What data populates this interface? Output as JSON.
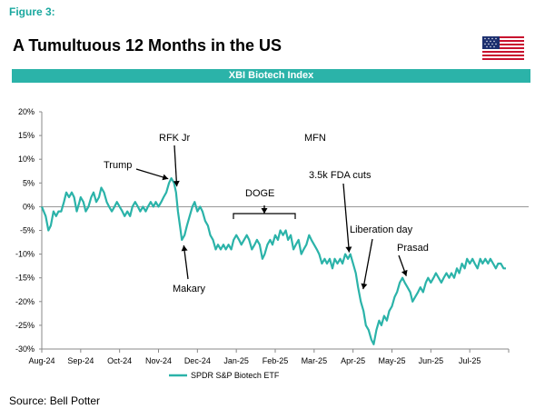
{
  "figure_label": "Figure 3:",
  "title": "A Tumultuous 12 Months in the US",
  "flag_icon": "us-flag-icon",
  "header_bar": "XBI Biotech Index",
  "source": "Source: Bell Potter",
  "colors": {
    "accent": "#2bb3a9",
    "label": "#1aa89f"
  },
  "chart_data": {
    "type": "line",
    "title": "XBI Biotech Index",
    "xlabel": "",
    "ylabel": "",
    "ylim": [
      -30,
      20
    ],
    "yticks": [
      20,
      15,
      10,
      5,
      0,
      -5,
      -10,
      -15,
      -20,
      -25,
      -30
    ],
    "ytick_labels": [
      "20%",
      "15%",
      "10%",
      "5%",
      "0%",
      "-5%",
      "-10%",
      "-15%",
      "-20%",
      "-25%",
      "-30%"
    ],
    "xticks": [
      "Aug-24",
      "Sep-24",
      "Oct-24",
      "Nov-24",
      "Dec-24",
      "Jan-25",
      "Feb-25",
      "Mar-25",
      "Apr-25",
      "May-25",
      "Jun-25",
      "Jul-25"
    ],
    "zero_line": true,
    "legend": {
      "position": "bottom-center",
      "entries": [
        "SPDR S&P Biotech ETF"
      ]
    },
    "series": [
      {
        "name": "SPDR S&P Biotech ETF",
        "color": "#2bb3a9",
        "points": [
          [
            0.0,
            0
          ],
          [
            0.1,
            -2
          ],
          [
            0.17,
            -5
          ],
          [
            0.23,
            -4
          ],
          [
            0.3,
            -1
          ],
          [
            0.37,
            -2
          ],
          [
            0.43,
            -1
          ],
          [
            0.5,
            -1
          ],
          [
            0.57,
            1
          ],
          [
            0.63,
            3
          ],
          [
            0.7,
            2
          ],
          [
            0.77,
            3
          ],
          [
            0.83,
            2
          ],
          [
            0.9,
            -1
          ],
          [
            0.97,
            1
          ],
          [
            1.0,
            2
          ],
          [
            1.07,
            1
          ],
          [
            1.13,
            -1
          ],
          [
            1.2,
            0
          ],
          [
            1.27,
            2
          ],
          [
            1.33,
            3
          ],
          [
            1.4,
            1
          ],
          [
            1.47,
            2
          ],
          [
            1.53,
            4
          ],
          [
            1.6,
            3
          ],
          [
            1.67,
            1
          ],
          [
            1.73,
            0
          ],
          [
            1.8,
            -1
          ],
          [
            1.87,
            0
          ],
          [
            1.93,
            1
          ],
          [
            2.0,
            0
          ],
          [
            2.07,
            -1
          ],
          [
            2.13,
            -2
          ],
          [
            2.2,
            -1
          ],
          [
            2.27,
            -2
          ],
          [
            2.33,
            0
          ],
          [
            2.4,
            1
          ],
          [
            2.47,
            0
          ],
          [
            2.53,
            -1
          ],
          [
            2.6,
            0
          ],
          [
            2.67,
            -1
          ],
          [
            2.73,
            0
          ],
          [
            2.8,
            1
          ],
          [
            2.87,
            0
          ],
          [
            2.93,
            1
          ],
          [
            3.0,
            0
          ],
          [
            3.07,
            1
          ],
          [
            3.13,
            2
          ],
          [
            3.2,
            3
          ],
          [
            3.27,
            5
          ],
          [
            3.33,
            6
          ],
          [
            3.4,
            5
          ],
          [
            3.45,
            3
          ],
          [
            3.5,
            -1
          ],
          [
            3.55,
            -4
          ],
          [
            3.6,
            -7
          ],
          [
            3.67,
            -6
          ],
          [
            3.73,
            -4
          ],
          [
            3.8,
            -2
          ],
          [
            3.87,
            0
          ],
          [
            3.93,
            1
          ],
          [
            4.0,
            -1
          ],
          [
            4.07,
            0
          ],
          [
            4.13,
            -1
          ],
          [
            4.2,
            -3
          ],
          [
            4.27,
            -4
          ],
          [
            4.33,
            -6
          ],
          [
            4.4,
            -7
          ],
          [
            4.47,
            -9
          ],
          [
            4.53,
            -8
          ],
          [
            4.6,
            -9
          ],
          [
            4.67,
            -8
          ],
          [
            4.73,
            -9
          ],
          [
            4.8,
            -8
          ],
          [
            4.87,
            -9
          ],
          [
            4.93,
            -7
          ],
          [
            5.0,
            -6
          ],
          [
            5.07,
            -7
          ],
          [
            5.13,
            -8
          ],
          [
            5.2,
            -7
          ],
          [
            5.27,
            -6
          ],
          [
            5.33,
            -7
          ],
          [
            5.4,
            -9
          ],
          [
            5.47,
            -8
          ],
          [
            5.53,
            -7
          ],
          [
            5.6,
            -8
          ],
          [
            5.67,
            -11
          ],
          [
            5.73,
            -10
          ],
          [
            5.8,
            -8
          ],
          [
            5.87,
            -7
          ],
          [
            5.93,
            -8
          ],
          [
            6.0,
            -6
          ],
          [
            6.07,
            -7
          ],
          [
            6.13,
            -5
          ],
          [
            6.2,
            -6
          ],
          [
            6.27,
            -5
          ],
          [
            6.33,
            -7
          ],
          [
            6.4,
            -6
          ],
          [
            6.47,
            -9
          ],
          [
            6.53,
            -8
          ],
          [
            6.6,
            -7
          ],
          [
            6.67,
            -10
          ],
          [
            6.73,
            -9
          ],
          [
            6.8,
            -8
          ],
          [
            6.87,
            -6
          ],
          [
            6.93,
            -7
          ],
          [
            7.0,
            -8
          ],
          [
            7.07,
            -9
          ],
          [
            7.13,
            -10
          ],
          [
            7.2,
            -12
          ],
          [
            7.27,
            -11
          ],
          [
            7.33,
            -12
          ],
          [
            7.4,
            -11
          ],
          [
            7.47,
            -13
          ],
          [
            7.53,
            -11
          ],
          [
            7.6,
            -12
          ],
          [
            7.67,
            -11
          ],
          [
            7.73,
            -12
          ],
          [
            7.8,
            -10
          ],
          [
            7.87,
            -11
          ],
          [
            7.93,
            -10
          ],
          [
            8.0,
            -12
          ],
          [
            8.07,
            -14
          ],
          [
            8.13,
            -17
          ],
          [
            8.2,
            -20
          ],
          [
            8.27,
            -22
          ],
          [
            8.33,
            -25
          ],
          [
            8.4,
            -26
          ],
          [
            8.47,
            -28
          ],
          [
            8.53,
            -29
          ],
          [
            8.6,
            -26
          ],
          [
            8.67,
            -24
          ],
          [
            8.73,
            -25
          ],
          [
            8.8,
            -23
          ],
          [
            8.87,
            -24
          ],
          [
            8.93,
            -22
          ],
          [
            9.0,
            -21
          ],
          [
            9.07,
            -19
          ],
          [
            9.13,
            -18
          ],
          [
            9.2,
            -16
          ],
          [
            9.27,
            -15
          ],
          [
            9.33,
            -16
          ],
          [
            9.4,
            -17
          ],
          [
            9.47,
            -18
          ],
          [
            9.53,
            -20
          ],
          [
            9.6,
            -19
          ],
          [
            9.67,
            -18
          ],
          [
            9.73,
            -17
          ],
          [
            9.8,
            -18
          ],
          [
            9.87,
            -16
          ],
          [
            9.93,
            -15
          ],
          [
            10.0,
            -16
          ],
          [
            10.07,
            -15
          ],
          [
            10.13,
            -14
          ],
          [
            10.2,
            -15
          ],
          [
            10.27,
            -16
          ],
          [
            10.33,
            -15
          ],
          [
            10.4,
            -14
          ],
          [
            10.47,
            -15
          ],
          [
            10.53,
            -14
          ],
          [
            10.6,
            -15
          ],
          [
            10.67,
            -13
          ],
          [
            10.73,
            -14
          ],
          [
            10.8,
            -12
          ],
          [
            10.87,
            -13
          ],
          [
            10.93,
            -11
          ],
          [
            11.0,
            -12
          ],
          [
            11.07,
            -11
          ],
          [
            11.13,
            -12
          ],
          [
            11.2,
            -13
          ],
          [
            11.27,
            -11
          ],
          [
            11.33,
            -12
          ],
          [
            11.4,
            -11
          ],
          [
            11.47,
            -12
          ],
          [
            11.53,
            -11
          ],
          [
            11.6,
            -12
          ],
          [
            11.67,
            -13
          ],
          [
            11.73,
            -12
          ],
          [
            11.8,
            -12
          ],
          [
            11.87,
            -13
          ],
          [
            11.93,
            -13
          ]
        ]
      }
    ],
    "annotations": [
      {
        "text": "Trump",
        "x": 3.25,
        "y": 5.5
      },
      {
        "text": "RFK Jr",
        "x": 3.47,
        "y": 3.5
      },
      {
        "text": "Makary",
        "x": 3.65,
        "y": -7
      },
      {
        "text": "DOGE",
        "x": 5.8,
        "y": -1
      },
      {
        "text": "MFN",
        "x": 7.45,
        "y": 14
      },
      {
        "text": "3.5k FDA cuts",
        "x": 7.9,
        "y": -10
      },
      {
        "text": "Liberation day",
        "x": 8.4,
        "y": -17
      },
      {
        "text": "Prasad",
        "x": 9.3,
        "y": -15
      }
    ]
  }
}
